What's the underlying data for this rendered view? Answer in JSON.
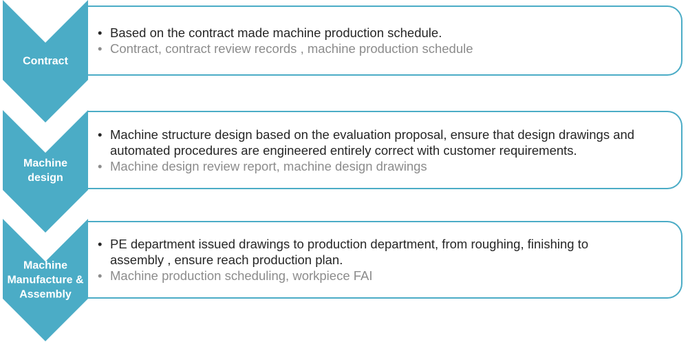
{
  "accent_color": "#4bacc6",
  "steps": [
    {
      "label": "Contract",
      "items": [
        "Based on the contract made machine production schedule."
      ],
      "records": "Contract, contract review records , machine production schedule"
    },
    {
      "label": "Machine design",
      "items": [
        "Machine structure design based on the evaluation proposal, ensure that design drawings and automated procedures are engineered entirely correct with customer requirements."
      ],
      "records": "Machine design review report, machine design drawings"
    },
    {
      "label": "Machine Manufacture & Assembly",
      "items": [
        "PE department issued drawings to production department, from roughing, finishing to assembly , ensure reach production plan."
      ],
      "records": "Machine production scheduling, workpiece FAI"
    }
  ]
}
